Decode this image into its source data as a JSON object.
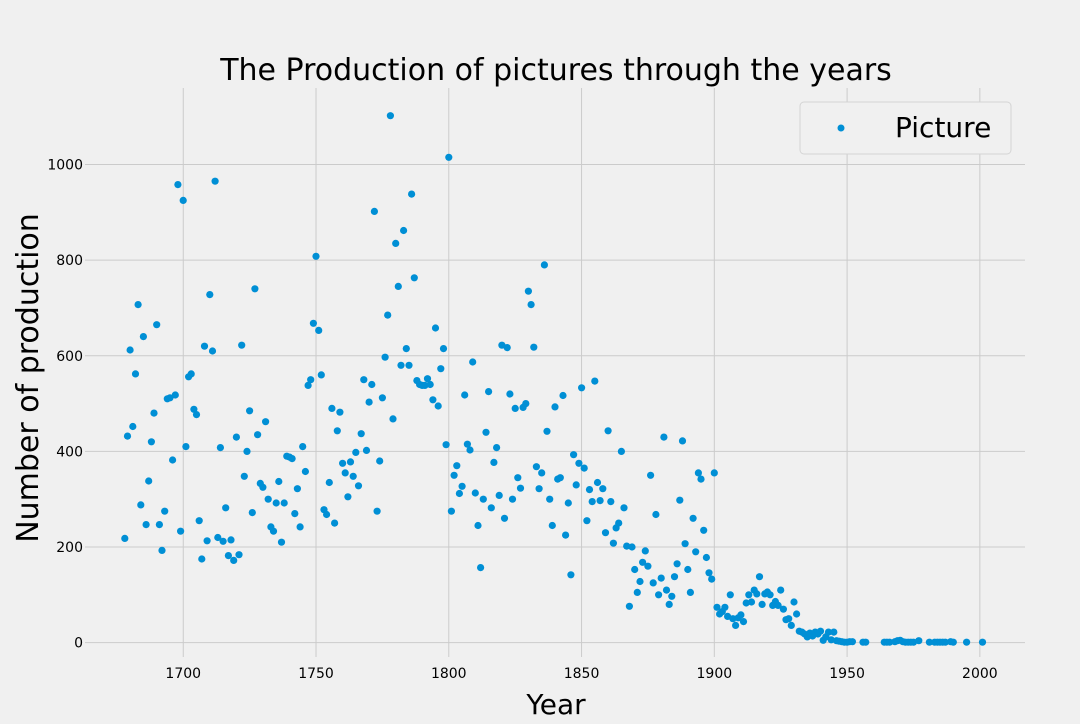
{
  "chart_data": {
    "type": "scatter",
    "title": "The Production of pictures through the years",
    "xlabel": "Year",
    "ylabel": "Number of production",
    "xlim": [
      1663,
      2017
    ],
    "ylim": [
      -30,
      1160
    ],
    "xticks": [
      1700,
      1750,
      1800,
      1850,
      1900,
      1950,
      2000
    ],
    "yticks": [
      0,
      200,
      400,
      600,
      800,
      1000
    ],
    "grid": true,
    "legend_position": "top-right",
    "colors": {
      "background": "#f0f0f0",
      "grid": "#cbcbcb",
      "marker": "#008fd5",
      "text": "#000000"
    },
    "series": [
      {
        "name": "Picture",
        "points": [
          [
            1678,
            218
          ],
          [
            1679,
            432
          ],
          [
            1680,
            612
          ],
          [
            1681,
            452
          ],
          [
            1682,
            562
          ],
          [
            1683,
            707
          ],
          [
            1684,
            288
          ],
          [
            1685,
            640
          ],
          [
            1686,
            247
          ],
          [
            1687,
            338
          ],
          [
            1688,
            420
          ],
          [
            1689,
            480
          ],
          [
            1690,
            665
          ],
          [
            1691,
            247
          ],
          [
            1692,
            193
          ],
          [
            1693,
            275
          ],
          [
            1694,
            510
          ],
          [
            1695,
            512
          ],
          [
            1696,
            382
          ],
          [
            1697,
            518
          ],
          [
            1698,
            958
          ],
          [
            1699,
            233
          ],
          [
            1700,
            925
          ],
          [
            1701,
            410
          ],
          [
            1702,
            556
          ],
          [
            1703,
            562
          ],
          [
            1704,
            488
          ],
          [
            1705,
            477
          ],
          [
            1706,
            255
          ],
          [
            1707,
            175
          ],
          [
            1708,
            620
          ],
          [
            1709,
            213
          ],
          [
            1710,
            728
          ],
          [
            1711,
            610
          ],
          [
            1712,
            965
          ],
          [
            1713,
            220
          ],
          [
            1714,
            408
          ],
          [
            1715,
            212
          ],
          [
            1716,
            282
          ],
          [
            1717,
            182
          ],
          [
            1718,
            215
          ],
          [
            1719,
            172
          ],
          [
            1720,
            430
          ],
          [
            1721,
            184
          ],
          [
            1722,
            622
          ],
          [
            1723,
            348
          ],
          [
            1724,
            400
          ],
          [
            1725,
            485
          ],
          [
            1726,
            272
          ],
          [
            1727,
            740
          ],
          [
            1728,
            435
          ],
          [
            1729,
            333
          ],
          [
            1730,
            325
          ],
          [
            1731,
            462
          ],
          [
            1732,
            300
          ],
          [
            1733,
            242
          ],
          [
            1734,
            233
          ],
          [
            1735,
            292
          ],
          [
            1736,
            337
          ],
          [
            1737,
            210
          ],
          [
            1738,
            292
          ],
          [
            1739,
            390
          ],
          [
            1740,
            388
          ],
          [
            1741,
            385
          ],
          [
            1742,
            270
          ],
          [
            1743,
            322
          ],
          [
            1744,
            242
          ],
          [
            1745,
            410
          ],
          [
            1746,
            358
          ],
          [
            1747,
            538
          ],
          [
            1748,
            550
          ],
          [
            1749,
            668
          ],
          [
            1750,
            808
          ],
          [
            1751,
            653
          ],
          [
            1752,
            560
          ],
          [
            1753,
            278
          ],
          [
            1754,
            268
          ],
          [
            1755,
            335
          ],
          [
            1756,
            490
          ],
          [
            1757,
            250
          ],
          [
            1758,
            443
          ],
          [
            1759,
            482
          ],
          [
            1760,
            375
          ],
          [
            1761,
            355
          ],
          [
            1762,
            305
          ],
          [
            1763,
            378
          ],
          [
            1764,
            348
          ],
          [
            1765,
            398
          ],
          [
            1766,
            328
          ],
          [
            1767,
            437
          ],
          [
            1768,
            550
          ],
          [
            1769,
            402
          ],
          [
            1770,
            503
          ],
          [
            1771,
            540
          ],
          [
            1772,
            902
          ],
          [
            1773,
            275
          ],
          [
            1774,
            380
          ],
          [
            1775,
            512
          ],
          [
            1776,
            597
          ],
          [
            1777,
            685
          ],
          [
            1778,
            1102
          ],
          [
            1779,
            468
          ],
          [
            1780,
            835
          ],
          [
            1781,
            745
          ],
          [
            1782,
            580
          ],
          [
            1783,
            862
          ],
          [
            1784,
            615
          ],
          [
            1785,
            580
          ],
          [
            1786,
            938
          ],
          [
            1787,
            763
          ],
          [
            1788,
            548
          ],
          [
            1789,
            540
          ],
          [
            1790,
            538
          ],
          [
            1791,
            538
          ],
          [
            1792,
            552
          ],
          [
            1793,
            540
          ],
          [
            1794,
            508
          ],
          [
            1795,
            658
          ],
          [
            1796,
            495
          ],
          [
            1797,
            573
          ],
          [
            1798,
            615
          ],
          [
            1799,
            414
          ],
          [
            1800,
            1015
          ],
          [
            1801,
            275
          ],
          [
            1802,
            350
          ],
          [
            1803,
            370
          ],
          [
            1804,
            312
          ],
          [
            1805,
            327
          ],
          [
            1806,
            518
          ],
          [
            1807,
            415
          ],
          [
            1808,
            403
          ],
          [
            1809,
            587
          ],
          [
            1810,
            313
          ],
          [
            1811,
            245
          ],
          [
            1812,
            157
          ],
          [
            1813,
            300
          ],
          [
            1814,
            440
          ],
          [
            1815,
            525
          ],
          [
            1816,
            282
          ],
          [
            1817,
            377
          ],
          [
            1818,
            408
          ],
          [
            1819,
            308
          ],
          [
            1820,
            622
          ],
          [
            1821,
            260
          ],
          [
            1822,
            617
          ],
          [
            1823,
            520
          ],
          [
            1824,
            300
          ],
          [
            1825,
            490
          ],
          [
            1826,
            345
          ],
          [
            1827,
            323
          ],
          [
            1828,
            492
          ],
          [
            1829,
            500
          ],
          [
            1830,
            735
          ],
          [
            1831,
            707
          ],
          [
            1832,
            618
          ],
          [
            1833,
            368
          ],
          [
            1834,
            322
          ],
          [
            1835,
            355
          ],
          [
            1836,
            790
          ],
          [
            1837,
            442
          ],
          [
            1838,
            300
          ],
          [
            1839,
            245
          ],
          [
            1840,
            493
          ],
          [
            1841,
            342
          ],
          [
            1842,
            345
          ],
          [
            1843,
            517
          ],
          [
            1844,
            225
          ],
          [
            1845,
            292
          ],
          [
            1846,
            142
          ],
          [
            1847,
            393
          ],
          [
            1848,
            330
          ],
          [
            1849,
            375
          ],
          [
            1850,
            533
          ],
          [
            1851,
            365
          ],
          [
            1852,
            255
          ],
          [
            1853,
            320
          ],
          [
            1854,
            295
          ],
          [
            1855,
            547
          ],
          [
            1856,
            335
          ],
          [
            1857,
            297
          ],
          [
            1858,
            322
          ],
          [
            1859,
            230
          ],
          [
            1860,
            443
          ],
          [
            1861,
            295
          ],
          [
            1862,
            208
          ],
          [
            1863,
            240
          ],
          [
            1864,
            250
          ],
          [
            1865,
            400
          ],
          [
            1866,
            282
          ],
          [
            1867,
            202
          ],
          [
            1868,
            76
          ],
          [
            1869,
            200
          ],
          [
            1870,
            153
          ],
          [
            1871,
            105
          ],
          [
            1872,
            128
          ],
          [
            1873,
            168
          ],
          [
            1874,
            192
          ],
          [
            1875,
            160
          ],
          [
            1876,
            350
          ],
          [
            1877,
            125
          ],
          [
            1878,
            268
          ],
          [
            1879,
            100
          ],
          [
            1880,
            135
          ],
          [
            1881,
            430
          ],
          [
            1882,
            110
          ],
          [
            1883,
            80
          ],
          [
            1884,
            97
          ],
          [
            1885,
            138
          ],
          [
            1886,
            165
          ],
          [
            1887,
            298
          ],
          [
            1888,
            422
          ],
          [
            1889,
            207
          ],
          [
            1890,
            153
          ],
          [
            1891,
            105
          ],
          [
            1892,
            260
          ],
          [
            1893,
            190
          ],
          [
            1894,
            355
          ],
          [
            1895,
            342
          ],
          [
            1896,
            235
          ],
          [
            1897,
            178
          ],
          [
            1898,
            146
          ],
          [
            1899,
            133
          ],
          [
            1900,
            355
          ],
          [
            1901,
            74
          ],
          [
            1902,
            60
          ],
          [
            1903,
            65
          ],
          [
            1904,
            74
          ],
          [
            1905,
            55
          ],
          [
            1906,
            100
          ],
          [
            1907,
            50
          ],
          [
            1908,
            36
          ],
          [
            1909,
            52
          ],
          [
            1910,
            58
          ],
          [
            1911,
            44
          ],
          [
            1912,
            83
          ],
          [
            1913,
            100
          ],
          [
            1914,
            85
          ],
          [
            1915,
            110
          ],
          [
            1916,
            102
          ],
          [
            1917,
            138
          ],
          [
            1918,
            80
          ],
          [
            1919,
            102
          ],
          [
            1920,
            106
          ],
          [
            1921,
            100
          ],
          [
            1922,
            78
          ],
          [
            1923,
            86
          ],
          [
            1924,
            78
          ],
          [
            1925,
            110
          ],
          [
            1926,
            70
          ],
          [
            1927,
            48
          ],
          [
            1928,
            50
          ],
          [
            1929,
            36
          ],
          [
            1930,
            85
          ],
          [
            1931,
            60
          ],
          [
            1932,
            24
          ],
          [
            1933,
            22
          ],
          [
            1934,
            18
          ],
          [
            1935,
            12
          ],
          [
            1936,
            20
          ],
          [
            1937,
            14
          ],
          [
            1938,
            22
          ],
          [
            1939,
            18
          ],
          [
            1940,
            24
          ],
          [
            1941,
            5
          ],
          [
            1942,
            12
          ],
          [
            1943,
            22
          ],
          [
            1944,
            6
          ],
          [
            1945,
            22
          ],
          [
            1946,
            4
          ],
          [
            1947,
            3
          ],
          [
            1948,
            2
          ],
          [
            1949,
            1
          ],
          [
            1950,
            1
          ],
          [
            1951,
            2
          ],
          [
            1952,
            2
          ],
          [
            1956,
            1
          ],
          [
            1957,
            1
          ],
          [
            1964,
            1
          ],
          [
            1965,
            1
          ],
          [
            1966,
            1
          ],
          [
            1968,
            2
          ],
          [
            1969,
            4
          ],
          [
            1970,
            5
          ],
          [
            1971,
            2
          ],
          [
            1972,
            1
          ],
          [
            1973,
            1
          ],
          [
            1974,
            1
          ],
          [
            1975,
            1
          ],
          [
            1977,
            4
          ],
          [
            1981,
            1
          ],
          [
            1983,
            1
          ],
          [
            1984,
            1
          ],
          [
            1985,
            1
          ],
          [
            1986,
            1
          ],
          [
            1987,
            1
          ],
          [
            1989,
            2
          ],
          [
            1990,
            1
          ],
          [
            1995,
            1
          ],
          [
            2001,
            1
          ]
        ]
      }
    ]
  }
}
